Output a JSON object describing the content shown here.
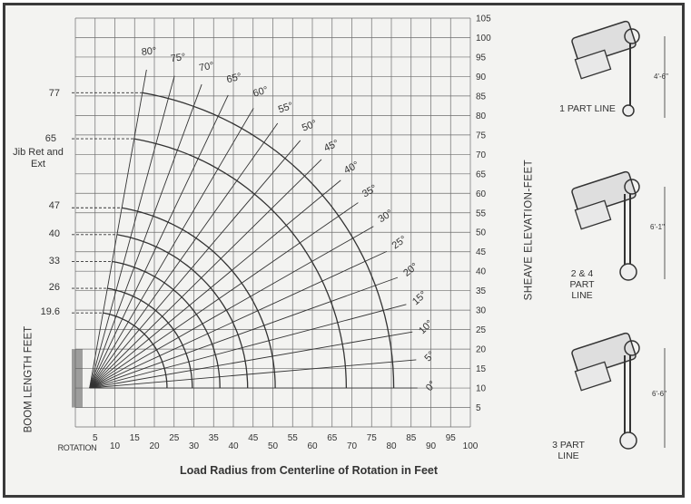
{
  "chart_data": {
    "type": "range diagram",
    "xlabel": "Load Radius from Centerline of Rotation in Feet",
    "ylabel": "SHEAVE ELEVATION-FEET",
    "boom_axis_label": "BOOM LENGTH FEET",
    "x_origin_label": "ROTATION",
    "xlim": [
      0,
      100
    ],
    "ylim": [
      0,
      105
    ],
    "x_ticks": [
      5,
      10,
      15,
      20,
      25,
      30,
      35,
      40,
      45,
      50,
      55,
      60,
      65,
      70,
      75,
      80,
      85,
      90,
      95,
      100
    ],
    "y_ticks": [
      5,
      10,
      15,
      20,
      25,
      30,
      35,
      40,
      45,
      50,
      55,
      60,
      65,
      70,
      75,
      80,
      85,
      90,
      95,
      100,
      105
    ],
    "boom_lengths": [
      {
        "label": "77",
        "length": 77
      },
      {
        "label": "65",
        "length": 65
      },
      {
        "label": "47",
        "length": 47
      },
      {
        "label": "40",
        "length": 40
      },
      {
        "label": "33",
        "length": 33
      },
      {
        "label": "26",
        "length": 26
      },
      {
        "label": "19.6",
        "length": 19.6
      }
    ],
    "jib_label": "Jib Ret and Ext",
    "boom_angles": [
      {
        "label": "0°",
        "deg": 0
      },
      {
        "label": "5°",
        "deg": 5
      },
      {
        "label": "10°",
        "deg": 10
      },
      {
        "label": "15°",
        "deg": 15
      },
      {
        "label": "20°",
        "deg": 20
      },
      {
        "label": "25°",
        "deg": 25
      },
      {
        "label": "30°",
        "deg": 30
      },
      {
        "label": "35°",
        "deg": 35
      },
      {
        "label": "40°",
        "deg": 40
      },
      {
        "label": "45°",
        "deg": 45
      },
      {
        "label": "50°",
        "deg": 50
      },
      {
        "label": "55°",
        "deg": 55
      },
      {
        "label": "60°",
        "deg": 60
      },
      {
        "label": "65°",
        "deg": 65
      },
      {
        "label": "70°",
        "deg": 70
      },
      {
        "label": "75°",
        "deg": 75
      },
      {
        "label": "80°",
        "deg": 80
      }
    ]
  },
  "reeving": [
    {
      "label": "1 PART LINE",
      "dimension": "4'-6\""
    },
    {
      "label": "2 & 4 PART LINE",
      "dimension": "6'-1\""
    },
    {
      "label": "3 PART LINE",
      "dimension": "6'-6\""
    }
  ],
  "colors": {
    "ink": "#333333",
    "grid": "#6e6e6e",
    "background": "#f3f3f1"
  }
}
